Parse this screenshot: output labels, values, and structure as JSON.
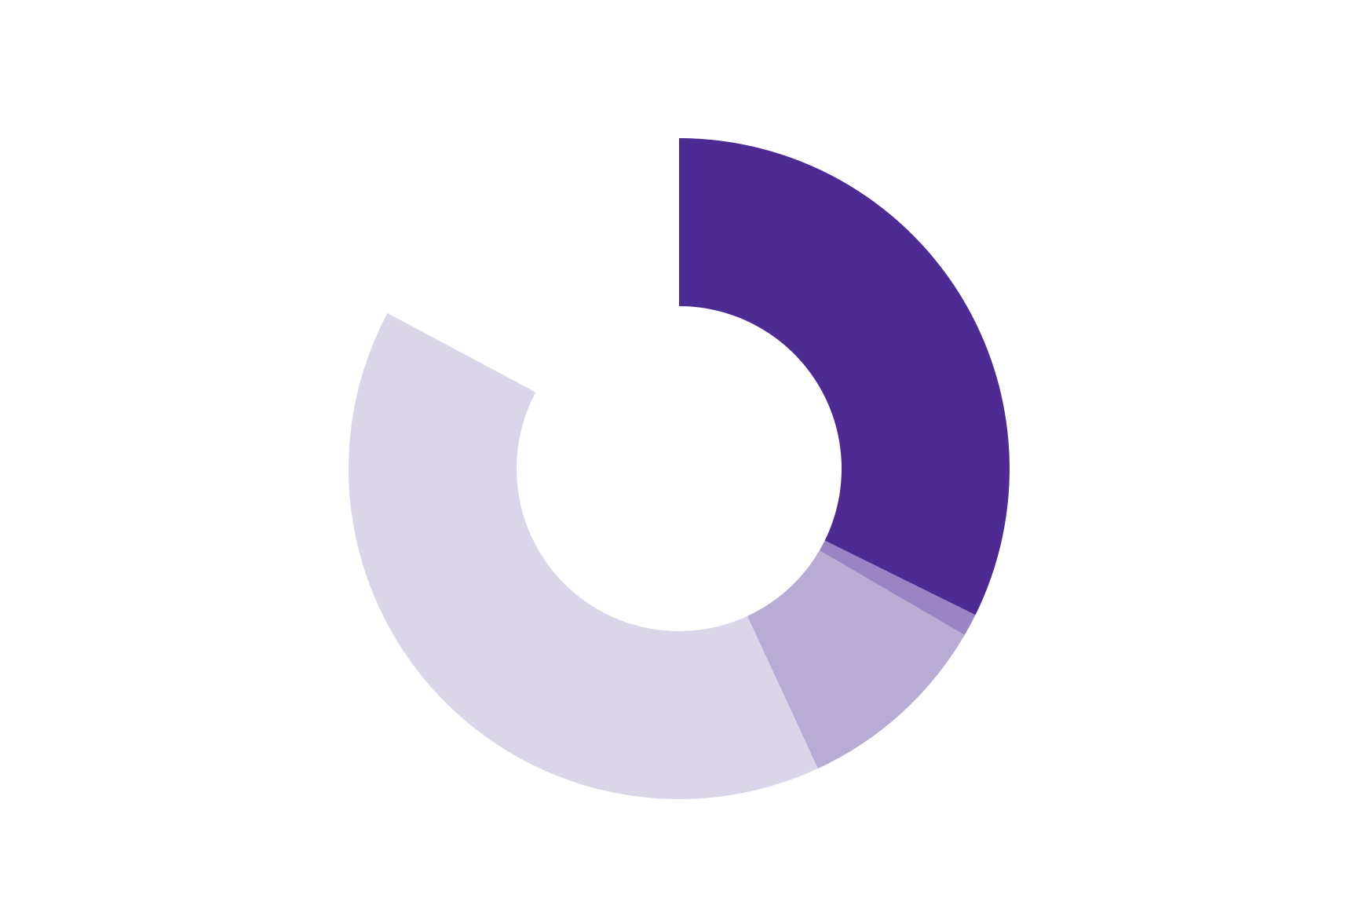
{
  "chart_data": {
    "type": "donut",
    "values": [
      32.3,
      1.1,
      9.7,
      39.7,
      17.2
    ],
    "colors": [
      "#4e2a93",
      "#9a85c4",
      "#b8acd4",
      "#dbd5ea",
      "#ffffff"
    ]
  }
}
